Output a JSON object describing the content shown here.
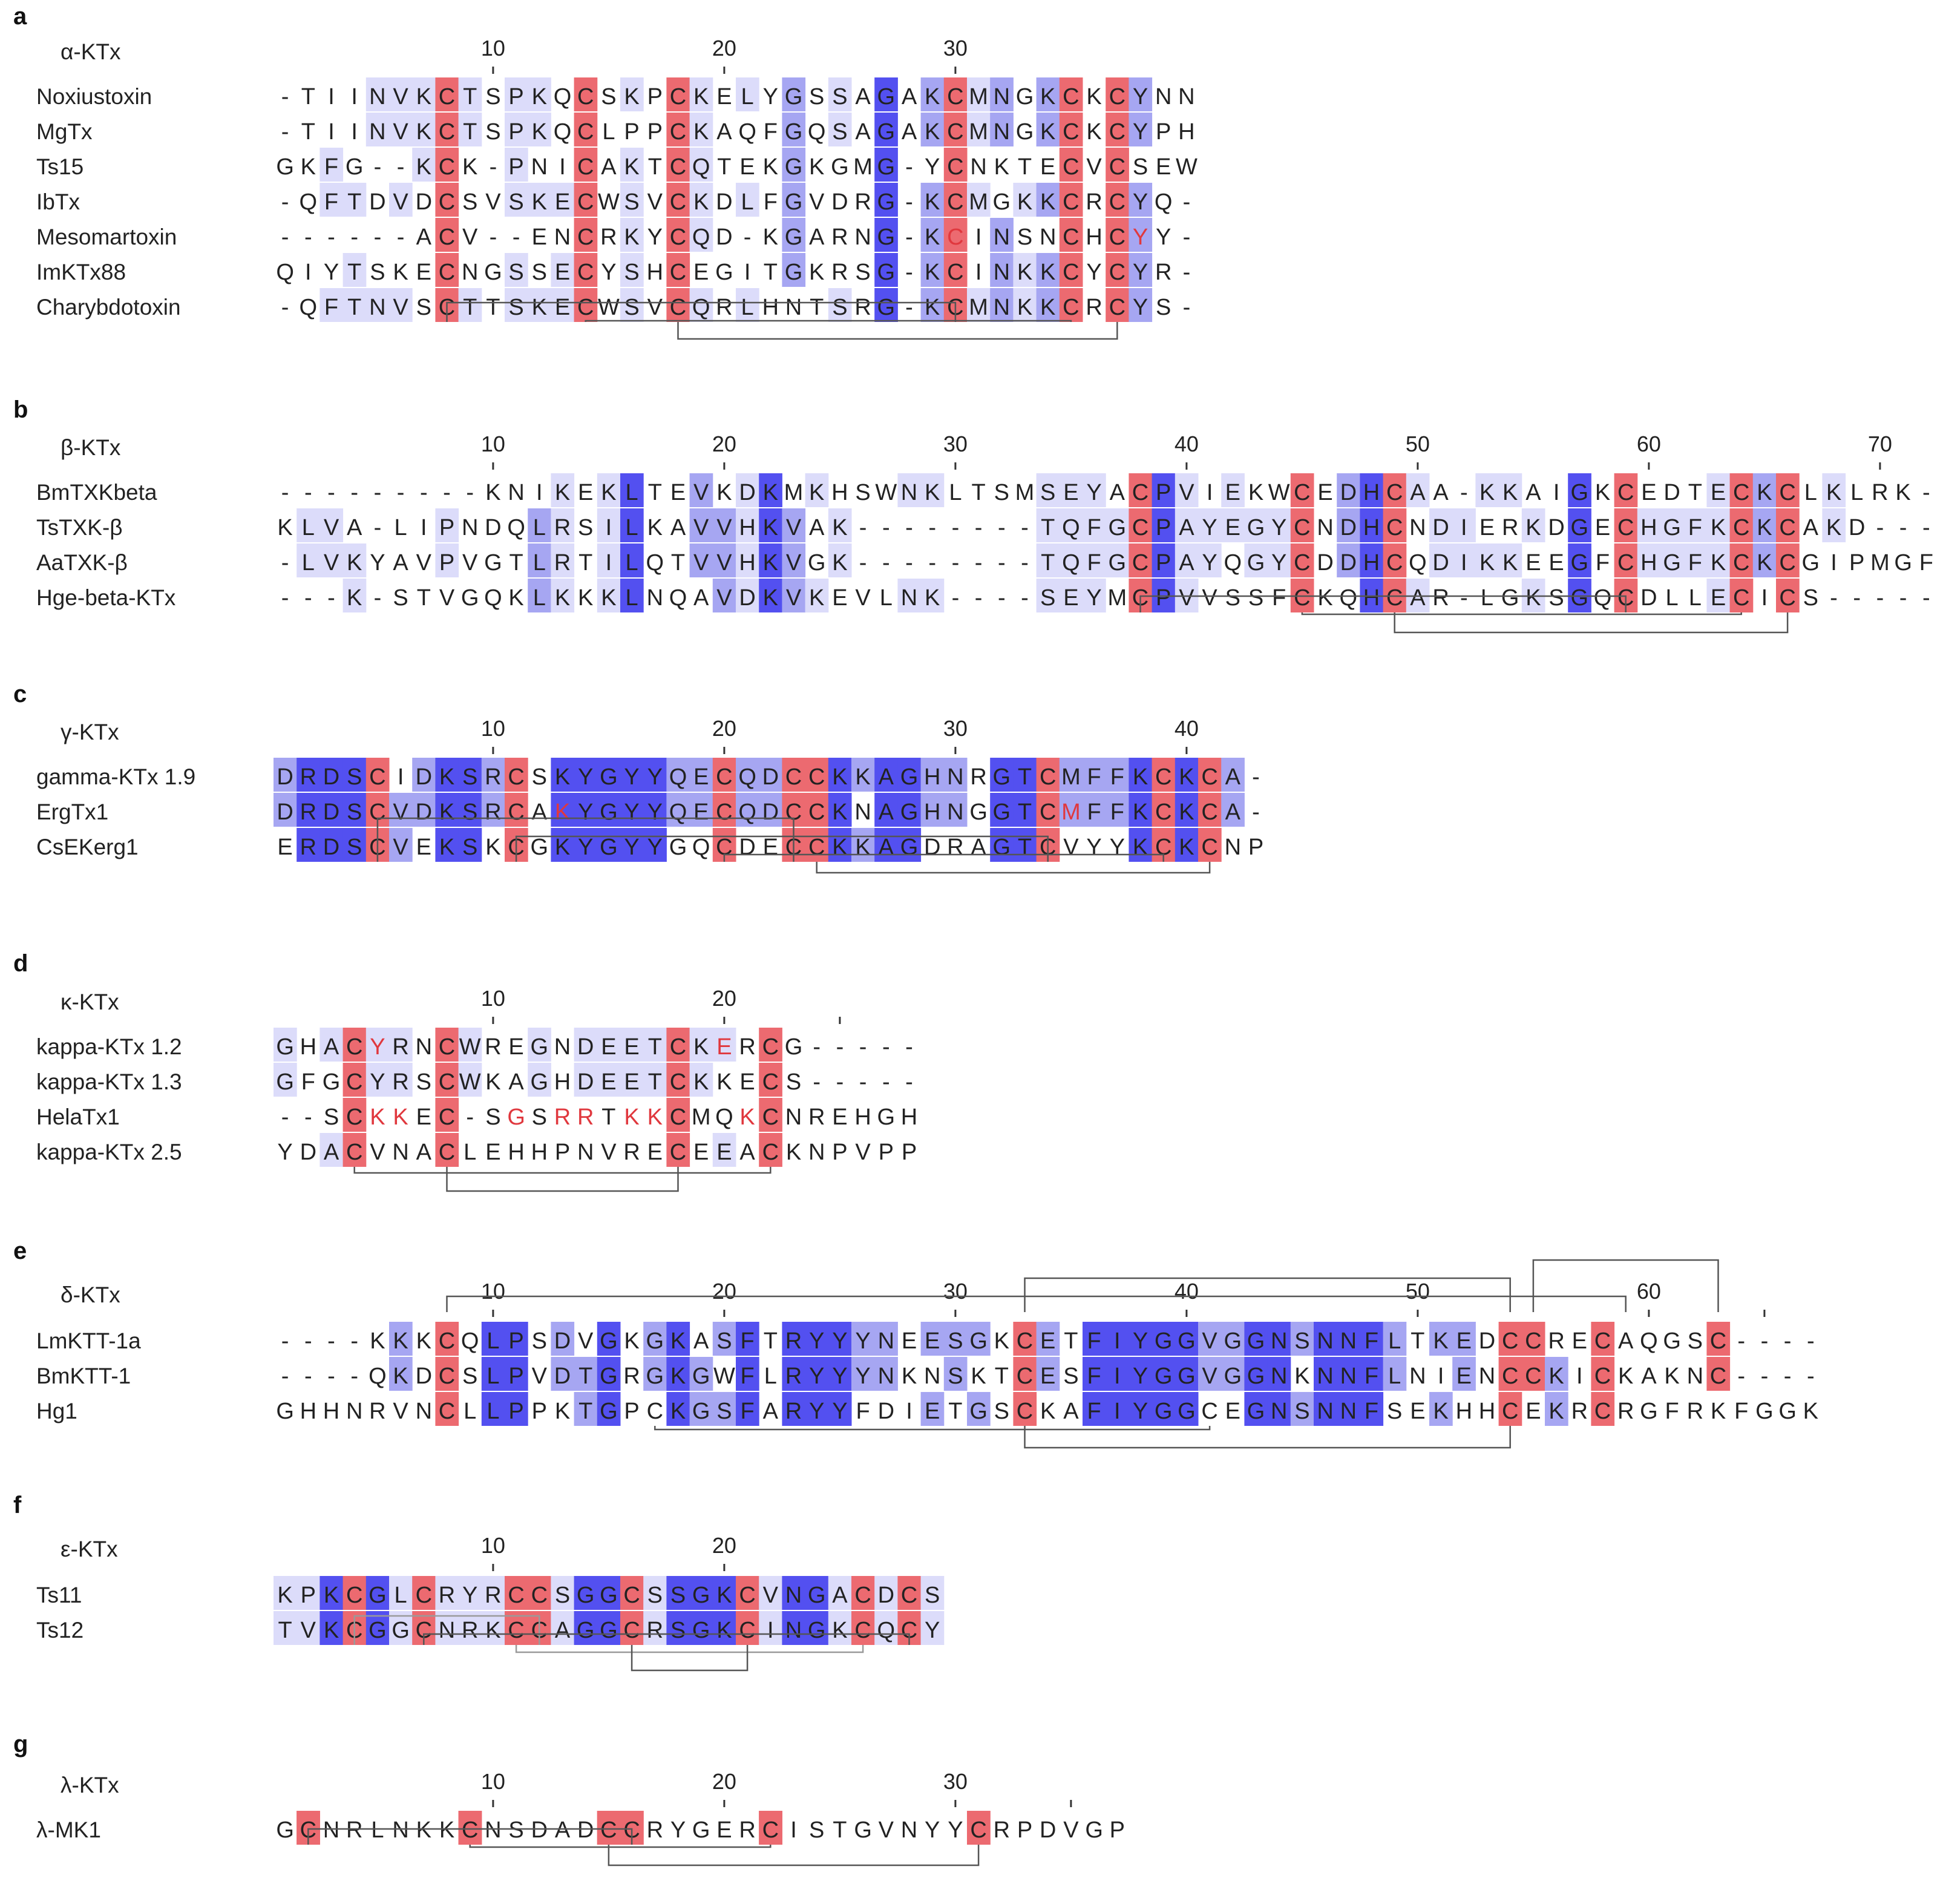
{
  "colors": {
    "cys": "#ec6a70",
    "dark_blue": "#5350f0",
    "mid_blue": "#a6a6f2",
    "light_blue": "#dcdcfa",
    "red_text": "#e0383e",
    "text": "#222222",
    "bridge": "#555555"
  },
  "panels": [
    {
      "letter": "a",
      "family": "α-KTx",
      "ticks": [
        {
          "pos": 10,
          "label": "10"
        },
        {
          "pos": 20,
          "label": "20"
        },
        {
          "pos": 30,
          "label": "30"
        }
      ],
      "sequences": [
        {
          "name": "Noxiustoxin",
          "seq": "-TIINVKCTSPKQCSKPCKELYGSSAGAKCMNGKCKCYNN"
        },
        {
          "name": "MgTx",
          "seq": "-TIINVKCTSPKQCLPPCKAQFGQSAGAKCMNGKCKCYPH"
        },
        {
          "name": "Ts15",
          "seq": "GKFG--KCK-PNICAKTCQTEKGKGMG-YCNKTECVCSEW"
        },
        {
          "name": "IbTx",
          "seq": "-QFTDVDCSVSKECWSVCKDLFGVDRG-KCMGKKCRCYQ-"
        },
        {
          "name": "Mesomartoxin",
          "seq": "------ACV--ENCRKYCQD-KGARNG-KCINSNCHCYY-"
        },
        {
          "name": "ImKTx88",
          "seq": "QIYTSKECNGSSECYSHCEGITGKRSG-KCINKKCYCYR-"
        },
        {
          "name": "Charybdotoxin",
          "seq": "-QFTNVSCTTSKECWSVCQRLHNTSRG-KCMNKKCRCYS-"
        }
      ],
      "red_letters": [
        [
          4,
          29
        ],
        [
          4,
          37
        ]
      ],
      "bridges": [
        {
          "from": 7,
          "to": 29,
          "level": 0,
          "light": false
        },
        {
          "from": 13,
          "to": 34,
          "level": 1,
          "light": false
        },
        {
          "from": 17,
          "to": 36,
          "level": 2,
          "light": false
        }
      ]
    },
    {
      "letter": "b",
      "family": "β-KTx",
      "ticks": [
        {
          "pos": 10,
          "label": "10"
        },
        {
          "pos": 20,
          "label": "20"
        },
        {
          "pos": 30,
          "label": "30"
        },
        {
          "pos": 40,
          "label": "40"
        },
        {
          "pos": 50,
          "label": "50"
        },
        {
          "pos": 60,
          "label": "60"
        },
        {
          "pos": 70,
          "label": "70"
        }
      ],
      "sequences": [
        {
          "name": "BmTXKbeta",
          "seq": "---------KNIKEKLTEVKDKMKHSWNKLTSMSEYACPVIEKWCEDHCAA-KKAIGKCEDTECKCLKLRK-"
        },
        {
          "name": "TsTXK-β",
          "seq": "KLVA-LIPNDQLRSILKAVVHKVAK--------TQFGCPAYEGYCNDHCNDIERKDGECHGFKCKCAKD---"
        },
        {
          "name": "AaTXK-β",
          "seq": "-LVKYAVPVGTLRTILQTVVHKVGK--------TQFGCPAYQGYCDDHCQDIKKEEGFCHGFKCKCGIPMGF"
        },
        {
          "name": "Hge-beta-KTx",
          "seq": "---K-STVGQKLKKKLNQAVDKVKEVLNK----SEYMCPVVSSFCKQHCAR-LGKSGQCDLLECICS-----"
        }
      ],
      "red_letters": [],
      "bridges": [
        {
          "from": 37,
          "to": 58,
          "level": 0,
          "light": false
        },
        {
          "from": 44,
          "to": 63,
          "level": 1,
          "light": false
        },
        {
          "from": 48,
          "to": 65,
          "level": 2,
          "light": false
        }
      ]
    },
    {
      "letter": "c",
      "family": "γ-KTx",
      "ticks": [
        {
          "pos": 10,
          "label": "10"
        },
        {
          "pos": 20,
          "label": "20"
        },
        {
          "pos": 30,
          "label": "30"
        },
        {
          "pos": 40,
          "label": "40"
        }
      ],
      "sequences": [
        {
          "name": "gamma-KTx 1.9",
          "seq": "DRDSCIDKSRCSKYGYYQECQDCCKKAGHNRGTCMFFKCKCA-"
        },
        {
          "name": "ErgTx1",
          "seq": "DRDSCVDKSRCAKYGYYQECQDCCKNAGHNGGTCMFFKCKCA-"
        },
        {
          "name": "CsEKerg1",
          "seq": "ERDSCVEKSKCGKYGYYGQCDECCKKAGDRAGTCVYYKCKCNP"
        }
      ],
      "red_letters": [
        [
          1,
          12
        ],
        [
          1,
          34
        ]
      ],
      "bridges": [
        {
          "from": 4,
          "to": 22,
          "level": 0,
          "light": false
        },
        {
          "from": 10,
          "to": 33,
          "level": 1,
          "light": false
        },
        {
          "from": 19,
          "to": 38,
          "level": 2,
          "light": false
        },
        {
          "from": 23,
          "to": 40,
          "level": 3,
          "light": false
        }
      ]
    },
    {
      "letter": "d",
      "family": "κ-KTx",
      "ticks": [
        {
          "pos": 10,
          "label": "10"
        },
        {
          "pos": 20,
          "label": "20"
        },
        {
          "pos": 25,
          "label": ""
        }
      ],
      "sequences": [
        {
          "name": "kappa-KTx 1.2",
          "seq": "GHACYRNCWREGNDEETCKERCG-----"
        },
        {
          "name": "kappa-KTx 1.3",
          "seq": "GFGCYRSCWKAGHDEETCKKECS-----"
        },
        {
          "name": "HelaTx1",
          "seq": "--SCKKEC-SGSRRTKKCMQKCNREHGH"
        },
        {
          "name": "kappa-KTx 2.5",
          "seq": "YDACVNACLEHHPNVRECEEACKNPVPP"
        }
      ],
      "red_letters": [
        [
          0,
          4
        ],
        [
          0,
          19
        ],
        [
          2,
          4
        ],
        [
          2,
          5
        ],
        [
          2,
          10
        ],
        [
          2,
          12
        ],
        [
          2,
          13
        ],
        [
          2,
          15
        ],
        [
          2,
          16
        ],
        [
          2,
          20
        ]
      ],
      "bridges": [
        {
          "from": 3,
          "to": 21,
          "level": 0,
          "light": false
        },
        {
          "from": 7,
          "to": 17,
          "level": 1,
          "light": false
        }
      ]
    },
    {
      "letter": "e",
      "family": "δ-KTx",
      "ticks": [
        {
          "pos": 10,
          "label": "10"
        },
        {
          "pos": 20,
          "label": "20"
        },
        {
          "pos": 30,
          "label": "30"
        },
        {
          "pos": 40,
          "label": "40"
        },
        {
          "pos": 50,
          "label": "50"
        },
        {
          "pos": 60,
          "label": "60"
        },
        {
          "pos": 65,
          "label": ""
        }
      ],
      "sequences": [
        {
          "name": "LmKTT-1a",
          "seq": "----KKKCQLPSDVGKGKASFTRYYYNEESGKCETFIYGGVGGNSNNFLTKEDCCRECAQGSC----"
        },
        {
          "name": "BmKTT-1",
          "seq": "----QKDCSLPVDTGRGKGWFLRYYYNKNSKTCESFIYGGVGGNKNNFLNIENCCKICKAKNC----"
        },
        {
          "name": "Hg1",
          "seq": "GHHNRVNCLLPPKTGPCKGSFARYYFDIETGSCKAFIYGGCEGNSNNFSEKHHCEKRCRGFRKFGGK"
        }
      ],
      "red_letters": [],
      "bridges": [
        {
          "from": 7,
          "to": 58,
          "level": -1,
          "light": false
        },
        {
          "from": 32,
          "to": 53,
          "level": -2,
          "light": false
        },
        {
          "from": 54,
          "to": 62,
          "level": -3,
          "light": false
        },
        {
          "from": 16,
          "to": 40,
          "level": 0,
          "light": false
        },
        {
          "from": 32,
          "to": 53,
          "level": 1,
          "light": false
        }
      ]
    },
    {
      "letter": "f",
      "family": "ε-KTx",
      "ticks": [
        {
          "pos": 10,
          "label": "10"
        },
        {
          "pos": 20,
          "label": "20"
        }
      ],
      "sequences": [
        {
          "name": "Ts11",
          "seq": "KPKCGLCRYRCCSGGCSSGKCVNGACDCS"
        },
        {
          "name": "Ts12",
          "seq": "TVKCGGCNRKCCAGGCRSGKCINGKCQCY"
        }
      ],
      "red_letters": [],
      "bridges": [
        {
          "from": 3,
          "to": 11,
          "level": 0,
          "light": true
        },
        {
          "from": 6,
          "to": 27,
          "level": 1,
          "light": false
        },
        {
          "from": 10,
          "to": 25,
          "level": 2,
          "light": true
        },
        {
          "from": 15,
          "to": 20,
          "level": 3,
          "light": false
        }
      ]
    },
    {
      "letter": "g",
      "family": "λ-KTx",
      "ticks": [
        {
          "pos": 10,
          "label": "10"
        },
        {
          "pos": 20,
          "label": "20"
        },
        {
          "pos": 30,
          "label": "30"
        },
        {
          "pos": 35,
          "label": ""
        }
      ],
      "sequences": [
        {
          "name": "λ-MK1",
          "seq": "GCNRLNKKCNSDADCCRYGERCISTGVNYYCRPDVGP"
        }
      ],
      "red_letters": [],
      "bridges": [
        {
          "from": 1,
          "to": 15,
          "level": 0,
          "light": false
        },
        {
          "from": 8,
          "to": 21,
          "level": 1,
          "light": false
        },
        {
          "from": 14,
          "to": 30,
          "level": 2,
          "light": false
        }
      ]
    }
  ]
}
